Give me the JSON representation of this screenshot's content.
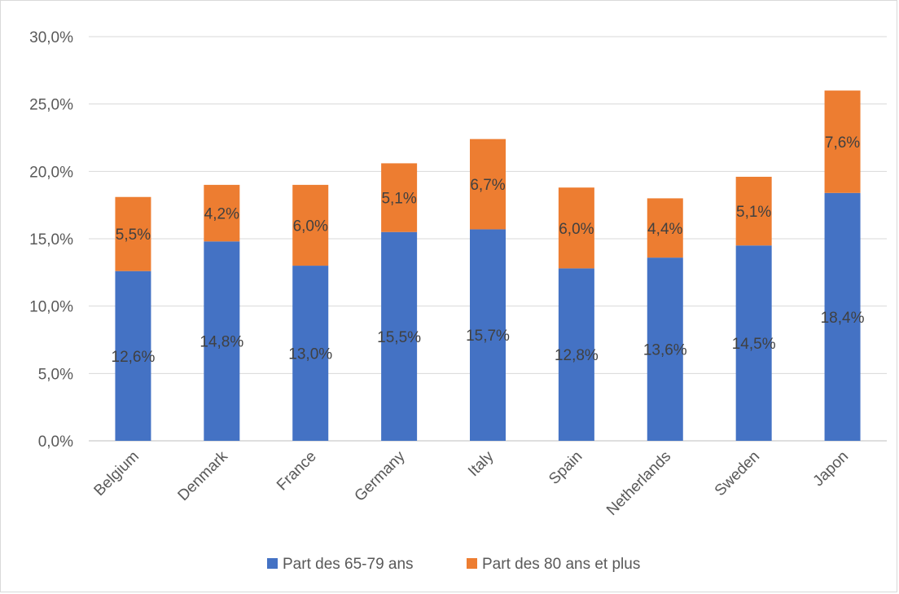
{
  "chart_data": {
    "type": "bar",
    "stacked": true,
    "categories": [
      "Belgium",
      "Denmark",
      "France",
      "Germany",
      "Italy",
      "Spain",
      "Netherlands",
      "Sweden",
      "Japon"
    ],
    "series": [
      {
        "name": "Part des 65-79 ans",
        "color": "#4472c4",
        "values": [
          12.6,
          14.8,
          13.0,
          15.5,
          15.7,
          12.8,
          13.6,
          14.5,
          18.4
        ],
        "labels": [
          "12,6%",
          "14,8%",
          "13,0%",
          "15,5%",
          "15,7%",
          "12,8%",
          "13,6%",
          "14,5%",
          "18,4%"
        ]
      },
      {
        "name": "Part des 80 ans et plus",
        "color": "#ed7d31",
        "values": [
          5.5,
          4.2,
          6.0,
          5.1,
          6.7,
          6.0,
          4.4,
          5.1,
          7.6
        ],
        "labels": [
          "5,5%",
          "4,2%",
          "6,0%",
          "5,1%",
          "6,7%",
          "6,0%",
          "4,4%",
          "5,1%",
          "7,6%"
        ]
      }
    ],
    "yticks": [
      0,
      5,
      10,
      15,
      20,
      25,
      30
    ],
    "ytick_labels": [
      "0,0%",
      "5,0%",
      "10,0%",
      "15,0%",
      "20,0%",
      "25,0%",
      "30,0%"
    ],
    "ylim": [
      0,
      30
    ],
    "grid": true,
    "legend_position": "bottom",
    "title": "",
    "xlabel": "",
    "ylabel": ""
  }
}
